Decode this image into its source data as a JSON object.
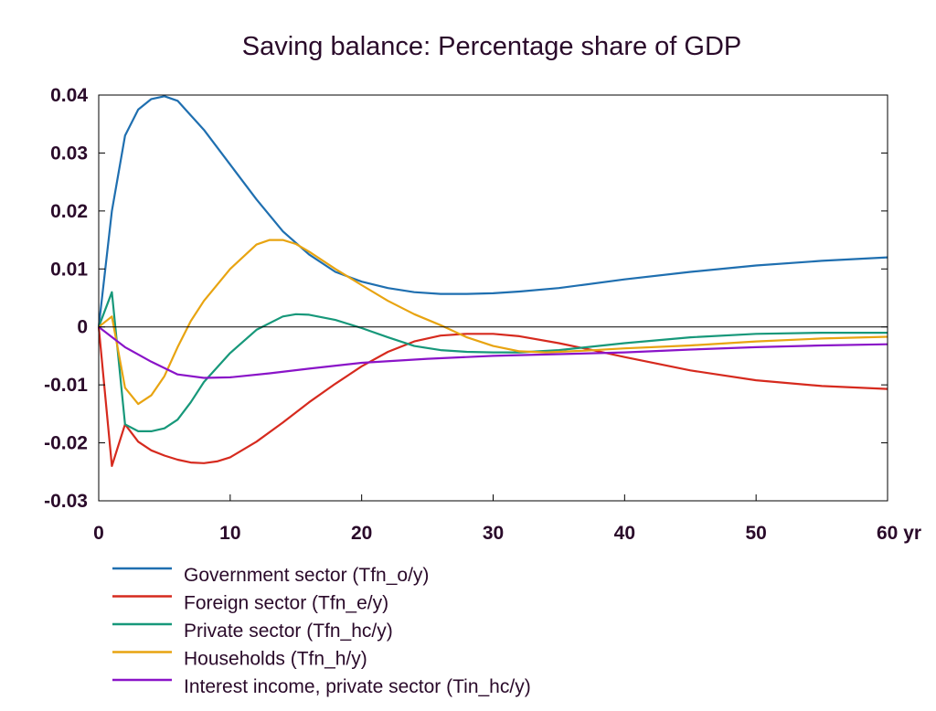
{
  "chart_data": {
    "type": "line",
    "title": "Saving balance: Percentage share of GDP",
    "xlabel": "",
    "ylabel": "",
    "x_unit": "yr",
    "xlim": [
      0,
      60
    ],
    "ylim": [
      -0.03,
      0.04
    ],
    "x_ticks": [
      0,
      10,
      20,
      30,
      40,
      50,
      60
    ],
    "x_tick_labels": [
      "0",
      "10",
      "20",
      "30",
      "40",
      "50",
      "60 yr"
    ],
    "y_ticks": [
      -0.03,
      -0.02,
      -0.01,
      0,
      0.01,
      0.02,
      0.03,
      0.04
    ],
    "y_tick_labels": [
      "-0.03",
      "-0.02",
      "-0.01",
      "0",
      "0.01",
      "0.02",
      "0.03",
      "0.04"
    ],
    "zero_line": true,
    "grid": false,
    "legend_position": "bottom-left",
    "series": [
      {
        "name": "Government sector (Tfn_o/y)",
        "color": "#1f6fb0",
        "points": [
          [
            0,
            0
          ],
          [
            1,
            0.02
          ],
          [
            2,
            0.033
          ],
          [
            3,
            0.0375
          ],
          [
            4,
            0.0393
          ],
          [
            5,
            0.0398
          ],
          [
            6,
            0.039
          ],
          [
            7,
            0.0365
          ],
          [
            8,
            0.034
          ],
          [
            10,
            0.028
          ],
          [
            12,
            0.022
          ],
          [
            14,
            0.0165
          ],
          [
            16,
            0.0125
          ],
          [
            18,
            0.0095
          ],
          [
            20,
            0.0078
          ],
          [
            22,
            0.0067
          ],
          [
            24,
            0.006
          ],
          [
            26,
            0.0057
          ],
          [
            28,
            0.0057
          ],
          [
            30,
            0.0058
          ],
          [
            32,
            0.0061
          ],
          [
            35,
            0.0067
          ],
          [
            40,
            0.0082
          ],
          [
            45,
            0.0095
          ],
          [
            50,
            0.0106
          ],
          [
            55,
            0.0114
          ],
          [
            60,
            0.012
          ]
        ]
      },
      {
        "name": "Foreign sector (Tfn_e/y)",
        "color": "#d62a1e",
        "points": [
          [
            0,
            0
          ],
          [
            1,
            -0.024
          ],
          [
            2,
            -0.0168
          ],
          [
            3,
            -0.0198
          ],
          [
            4,
            -0.0213
          ],
          [
            5,
            -0.0222
          ],
          [
            6,
            -0.0229
          ],
          [
            7,
            -0.0234
          ],
          [
            8,
            -0.0235
          ],
          [
            9,
            -0.0232
          ],
          [
            10,
            -0.0225
          ],
          [
            12,
            -0.0198
          ],
          [
            14,
            -0.0165
          ],
          [
            16,
            -0.013
          ],
          [
            18,
            -0.0098
          ],
          [
            20,
            -0.0068
          ],
          [
            22,
            -0.0043
          ],
          [
            24,
            -0.0025
          ],
          [
            26,
            -0.0015
          ],
          [
            28,
            -0.0012
          ],
          [
            30,
            -0.0012
          ],
          [
            32,
            -0.0016
          ],
          [
            35,
            -0.0028
          ],
          [
            38,
            -0.0042
          ],
          [
            40,
            -0.0052
          ],
          [
            45,
            -0.0075
          ],
          [
            50,
            -0.0092
          ],
          [
            55,
            -0.0102
          ],
          [
            60,
            -0.0107
          ]
        ]
      },
      {
        "name": "Private sector (Tfn_hc/y)",
        "color": "#17987a",
        "points": [
          [
            0,
            0
          ],
          [
            1,
            0.006
          ],
          [
            2,
            -0.0168
          ],
          [
            3,
            -0.018
          ],
          [
            4,
            -0.018
          ],
          [
            5,
            -0.0175
          ],
          [
            6,
            -0.016
          ],
          [
            7,
            -0.013
          ],
          [
            8,
            -0.0095
          ],
          [
            10,
            -0.0045
          ],
          [
            12,
            -0.0005
          ],
          [
            14,
            0.0018
          ],
          [
            15,
            0.0022
          ],
          [
            16,
            0.0021
          ],
          [
            18,
            0.0012
          ],
          [
            20,
            -0.0002
          ],
          [
            22,
            -0.0018
          ],
          [
            24,
            -0.0033
          ],
          [
            26,
            -0.004
          ],
          [
            28,
            -0.0043
          ],
          [
            30,
            -0.0044
          ],
          [
            32,
            -0.0044
          ],
          [
            35,
            -0.004
          ],
          [
            40,
            -0.0028
          ],
          [
            45,
            -0.0018
          ],
          [
            50,
            -0.0012
          ],
          [
            55,
            -0.001
          ],
          [
            60,
            -0.001
          ]
        ]
      },
      {
        "name": "Households (Tfn_h/y)",
        "color": "#e8a411",
        "points": [
          [
            0,
            0
          ],
          [
            1,
            0.0018
          ],
          [
            2,
            -0.0105
          ],
          [
            3,
            -0.0133
          ],
          [
            4,
            -0.0118
          ],
          [
            5,
            -0.0085
          ],
          [
            6,
            -0.0035
          ],
          [
            7,
            0.001
          ],
          [
            8,
            0.0045
          ],
          [
            10,
            0.01
          ],
          [
            12,
            0.0142
          ],
          [
            13,
            0.015
          ],
          [
            14,
            0.015
          ],
          [
            15,
            0.0143
          ],
          [
            16,
            0.013
          ],
          [
            18,
            0.01
          ],
          [
            20,
            0.0072
          ],
          [
            22,
            0.0045
          ],
          [
            24,
            0.0022
          ],
          [
            26,
            0.0003
          ],
          [
            28,
            -0.0018
          ],
          [
            30,
            -0.0033
          ],
          [
            32,
            -0.0042
          ],
          [
            34,
            -0.0044
          ],
          [
            37,
            -0.0041
          ],
          [
            40,
            -0.0037
          ],
          [
            45,
            -0.0032
          ],
          [
            50,
            -0.0025
          ],
          [
            55,
            -0.002
          ],
          [
            60,
            -0.0017
          ]
        ]
      },
      {
        "name": "Interest income, private sector (Tin_hc/y)",
        "color": "#8a14c8",
        "points": [
          [
            0,
            0
          ],
          [
            2,
            -0.0035
          ],
          [
            4,
            -0.006
          ],
          [
            6,
            -0.0082
          ],
          [
            8,
            -0.0088
          ],
          [
            10,
            -0.0087
          ],
          [
            13,
            -0.008
          ],
          [
            16,
            -0.0072
          ],
          [
            20,
            -0.0062
          ],
          [
            25,
            -0.0055
          ],
          [
            30,
            -0.005
          ],
          [
            35,
            -0.0047
          ],
          [
            40,
            -0.0044
          ],
          [
            45,
            -0.0039
          ],
          [
            50,
            -0.0035
          ],
          [
            55,
            -0.0032
          ],
          [
            60,
            -0.003
          ]
        ]
      }
    ]
  }
}
